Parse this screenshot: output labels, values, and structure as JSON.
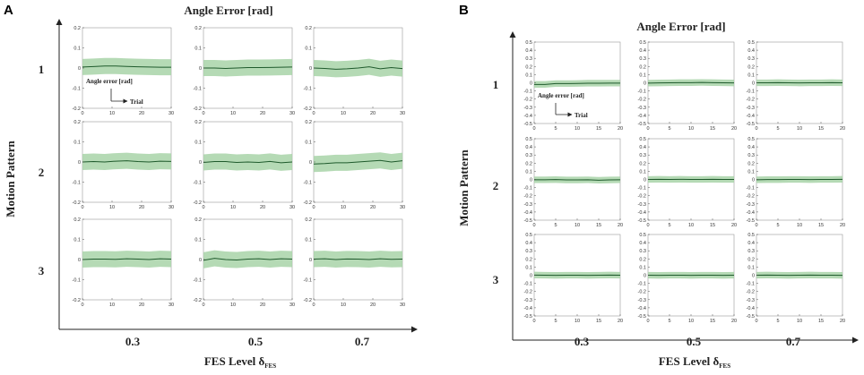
{
  "panels": [
    {
      "letter": "A",
      "title": "Angle Error [rad]",
      "ylabel": "Motion Pattern",
      "xlabel_main": "FES Level δ",
      "xlabel_sub": "FES",
      "row_labels": [
        "1",
        "2",
        "3"
      ],
      "col_labels": [
        "0.3",
        "0.5",
        "0.7"
      ],
      "annotation_y": "Angle error [rad]",
      "annotation_x": "Trial"
    },
    {
      "letter": "B",
      "title": "Angle Error [rad]",
      "ylabel": "Motion Pattern",
      "xlabel_main": "FES Level δ",
      "xlabel_sub": "FES",
      "row_labels": [
        "1",
        "2",
        "3"
      ],
      "col_labels": [
        "0.3",
        "0.5",
        "0.7"
      ],
      "annotation_y": "Angle error [rad]",
      "annotation_x": "Trial"
    }
  ],
  "colors": {
    "band": "#a8d4a8",
    "line": "#1f5a2c",
    "axis": "#222222",
    "frame": "#9a9a9a"
  },
  "chart_data": [
    {
      "type": "line",
      "panel": "A",
      "title": "Angle Error [rad]",
      "xlabel": "Trial",
      "ylabel": "Angle error [rad]",
      "xlim": [
        0,
        30
      ],
      "ylim": [
        -0.2,
        0.2
      ],
      "x_ticks": [
        "0",
        "10",
        "20",
        "30"
      ],
      "y_ticks": [
        "0.2",
        "0.1",
        "0",
        "-0.1",
        "-0.2"
      ],
      "band_halfwidth": 0.04,
      "rows": [
        "1",
        "2",
        "3"
      ],
      "cols": [
        "0.3",
        "0.5",
        "0.7"
      ],
      "series": [
        {
          "name": "pattern 1, FES 0.3",
          "mean": [
            0.005,
            0.007,
            0.01,
            0.01,
            0.008,
            0.006,
            0.005,
            0.004,
            0.004
          ]
        },
        {
          "name": "pattern 1, FES 0.5",
          "mean": [
            0.0,
            0.0,
            -0.002,
            0.0,
            0.002,
            0.002,
            0.003,
            0.004,
            0.005
          ]
        },
        {
          "name": "pattern 1, FES 0.7",
          "mean": [
            0.0,
            -0.002,
            -0.006,
            -0.004,
            0.0,
            0.006,
            -0.004,
            0.002,
            -0.003
          ]
        },
        {
          "name": "pattern 2, FES 0.3",
          "mean": [
            0.0,
            0.002,
            0.0,
            0.004,
            0.006,
            0.002,
            0.0,
            0.004,
            0.003
          ]
        },
        {
          "name": "pattern 2, FES 0.5",
          "mean": [
            -0.002,
            0.002,
            0.002,
            -0.002,
            0.0,
            -0.002,
            0.003,
            -0.004,
            0.0
          ]
        },
        {
          "name": "pattern 2, FES 0.7",
          "mean": [
            -0.01,
            -0.008,
            -0.004,
            -0.004,
            0.0,
            0.004,
            0.008,
            0.0,
            0.006
          ]
        },
        {
          "name": "pattern 3, FES 0.3",
          "mean": [
            0.0,
            0.002,
            0.002,
            0.001,
            0.004,
            0.002,
            0.0,
            0.004,
            0.002
          ]
        },
        {
          "name": "pattern 3, FES 0.5",
          "mean": [
            -0.004,
            0.006,
            0.0,
            -0.002,
            0.002,
            0.004,
            0.0,
            0.004,
            0.002
          ]
        },
        {
          "name": "pattern 3, FES 0.7",
          "mean": [
            0.002,
            0.004,
            0.0,
            0.003,
            0.002,
            0.0,
            0.004,
            0.001,
            0.002
          ]
        }
      ]
    },
    {
      "type": "line",
      "panel": "B",
      "title": "Angle Error [rad]",
      "xlabel": "Trial",
      "ylabel": "Angle error [rad]",
      "xlim": [
        0,
        20
      ],
      "ylim": [
        -0.5,
        0.5
      ],
      "x_ticks": [
        "0",
        "5",
        "10",
        "15",
        "20"
      ],
      "y_ticks": [
        "0.5",
        "0.4",
        "0.3",
        "0.2",
        "0.1",
        "0",
        "-0.1",
        "-0.2",
        "-0.3",
        "-0.4",
        "-0.5"
      ],
      "band_halfwidth": 0.04,
      "rows": [
        "1",
        "2",
        "3"
      ],
      "cols": [
        "0.3",
        "0.5",
        "0.7"
      ],
      "series": [
        {
          "name": "pattern 1, FES 0.3",
          "mean": [
            -0.02,
            -0.02,
            -0.01,
            -0.01,
            -0.008,
            -0.005,
            -0.005,
            -0.004,
            -0.004
          ]
        },
        {
          "name": "pattern 1, FES 0.5",
          "mean": [
            -0.004,
            -0.002,
            0.0,
            0.002,
            0.002,
            0.004,
            0.002,
            0.0,
            -0.002
          ]
        },
        {
          "name": "pattern 1, FES 0.7",
          "mean": [
            0.0,
            0.0,
            0.002,
            0.0,
            -0.002,
            0.0,
            0.0,
            0.002,
            0.0
          ]
        },
        {
          "name": "pattern 2, FES 0.3",
          "mean": [
            -0.004,
            -0.004,
            -0.002,
            -0.006,
            -0.006,
            -0.004,
            -0.01,
            -0.006,
            -0.004
          ]
        },
        {
          "name": "pattern 2, FES 0.5",
          "mean": [
            0.0,
            0.002,
            0.0,
            0.002,
            0.0,
            0.0,
            0.002,
            0.0,
            0.0
          ]
        },
        {
          "name": "pattern 2, FES 0.7",
          "mean": [
            -0.004,
            -0.002,
            -0.002,
            0.0,
            0.0,
            -0.002,
            0.0,
            0.0,
            0.002
          ]
        },
        {
          "name": "pattern 3, FES 0.3",
          "mean": [
            0.002,
            0.0,
            -0.002,
            0.0,
            0.0,
            -0.002,
            0.0,
            0.002,
            0.0
          ]
        },
        {
          "name": "pattern 3, FES 0.5",
          "mean": [
            0.0,
            -0.002,
            0.0,
            0.0,
            -0.002,
            0.0,
            0.0,
            -0.002,
            0.0
          ]
        },
        {
          "name": "pattern 3, FES 0.7",
          "mean": [
            0.0,
            0.002,
            0.0,
            -0.002,
            0.0,
            0.002,
            0.0,
            0.0,
            -0.002
          ]
        }
      ]
    }
  ]
}
